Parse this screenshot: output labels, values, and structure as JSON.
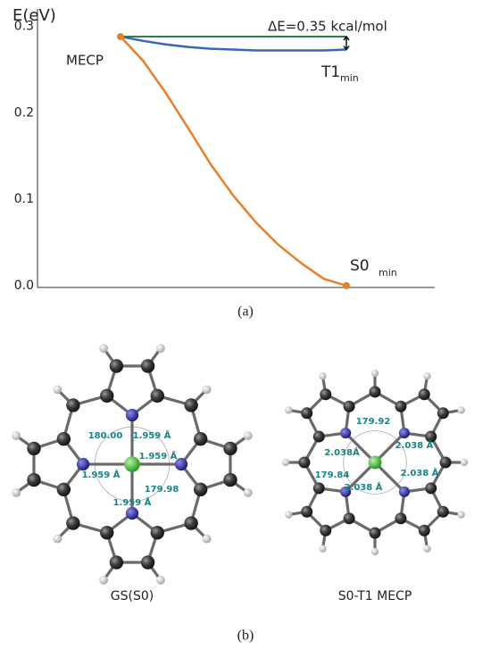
{
  "chart_data": {
    "type": "line",
    "y_label": "E(eV)",
    "categories": [
      null,
      null,
      null,
      null,
      null,
      null,
      null,
      null,
      null,
      null,
      null
    ],
    "series": [
      {
        "color": "#e8802a",
        "values": [
          0.288,
          0.26,
          0.223,
          0.182,
          0.14,
          0.104,
          0.073,
          0.047,
          0.026,
          0.008,
          0.0
        ]
      },
      {
        "color": "#3a66b8",
        "values": [
          0.288,
          0.283,
          0.279,
          0.276,
          0.274,
          0.273,
          0.272,
          0.272,
          0.272,
          0.272,
          0.273
        ]
      },
      {
        "color": "#2e7d4f",
        "values": [
          0.288,
          0.288,
          0.288,
          0.288,
          0.288,
          0.288,
          0.288,
          0.288,
          0.288,
          0.288,
          0.288
        ]
      }
    ],
    "ylim": [
      0,
      0.32
    ],
    "yticks": [
      {
        "value": 0,
        "label": "0.0"
      },
      0.1,
      0.2,
      0.3
    ],
    "annotations": {
      "mecp": "MECP",
      "delta_e": "ΔE=0.35 kcal/mol",
      "t1": "T1",
      "t1_sub": "min",
      "s0": "S0",
      "s0_sub": "min"
    },
    "caption": "(a)"
  },
  "figure_b": {
    "molecules": [
      {
        "name": "GS(S0)",
        "labels": [
          "180.00",
          "1.959 Å",
          "1.959 Å",
          "1.959 Å",
          "179.98",
          "1.959 Å"
        ]
      },
      {
        "name": "S0-T1 MECP",
        "labels": [
          "179.92",
          "2.038Å",
          "2.038 Å",
          "179.84",
          "2.038 Å",
          "2.038 Å"
        ]
      }
    ],
    "caption": "(b)"
  }
}
